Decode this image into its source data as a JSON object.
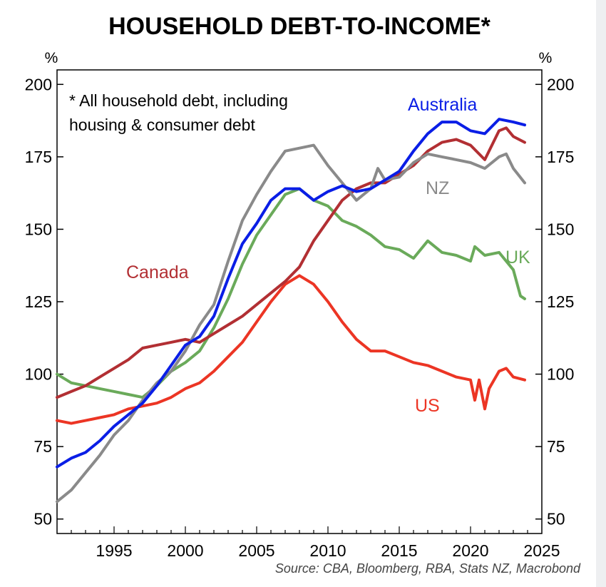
{
  "chart_data": {
    "type": "line",
    "title": "HOUSEHOLD DEBT-TO-INCOME*",
    "ylabel_left": "%",
    "ylabel_right": "%",
    "xlim": [
      1991,
      2025
    ],
    "ylim": [
      45,
      205
    ],
    "x_ticks": [
      1995,
      2000,
      2005,
      2010,
      2015,
      2020,
      2025
    ],
    "y_ticks": [
      50,
      75,
      100,
      125,
      150,
      175,
      200
    ],
    "note": [
      "*  All household debt, including",
      "housing & consumer debt"
    ],
    "source": "Source: CBA, Bloomberg, RBA, Stats NZ, Macrobond",
    "grid": false,
    "series": [
      {
        "name": "Australia",
        "color": "#0a1ee6",
        "values": [
          [
            1991.0,
            68
          ],
          [
            1992.0,
            71
          ],
          [
            1993.0,
            73
          ],
          [
            1994.0,
            77
          ],
          [
            1995.0,
            82
          ],
          [
            1996.0,
            86
          ],
          [
            1997.0,
            90
          ],
          [
            1998.0,
            96
          ],
          [
            1999.0,
            103
          ],
          [
            2000.0,
            110
          ],
          [
            2001.0,
            113
          ],
          [
            2002.0,
            120
          ],
          [
            2003.0,
            133
          ],
          [
            2004.0,
            145
          ],
          [
            2005.0,
            152
          ],
          [
            2006.0,
            160
          ],
          [
            2007.0,
            164
          ],
          [
            2008.0,
            164
          ],
          [
            2009.0,
            160
          ],
          [
            2010.0,
            163
          ],
          [
            2011.0,
            165
          ],
          [
            2012.0,
            163
          ],
          [
            2013.0,
            164
          ],
          [
            2014.0,
            167
          ],
          [
            2015.0,
            170
          ],
          [
            2016.0,
            177
          ],
          [
            2017.0,
            183
          ],
          [
            2018.0,
            187
          ],
          [
            2019.0,
            187
          ],
          [
            2020.0,
            184
          ],
          [
            2021.0,
            183
          ],
          [
            2022.0,
            188
          ],
          [
            2023.0,
            187
          ],
          [
            2023.8,
            186
          ]
        ]
      },
      {
        "name": "Canada",
        "color": "#b22f33",
        "values": [
          [
            1991.0,
            92
          ],
          [
            1992.0,
            94
          ],
          [
            1993.0,
            96
          ],
          [
            1994.0,
            99
          ],
          [
            1995.0,
            102
          ],
          [
            1996.0,
            105
          ],
          [
            1997.0,
            109
          ],
          [
            1998.0,
            110
          ],
          [
            1999.0,
            111
          ],
          [
            2000.0,
            112
          ],
          [
            2001.0,
            111
          ],
          [
            2002.0,
            114
          ],
          [
            2003.0,
            117
          ],
          [
            2004.0,
            120
          ],
          [
            2005.0,
            124
          ],
          [
            2006.0,
            128
          ],
          [
            2007.0,
            132
          ],
          [
            2008.0,
            137
          ],
          [
            2009.0,
            146
          ],
          [
            2010.0,
            153
          ],
          [
            2011.0,
            160
          ],
          [
            2012.0,
            164
          ],
          [
            2013.0,
            166
          ],
          [
            2014.0,
            166
          ],
          [
            2015.0,
            169
          ],
          [
            2016.0,
            172
          ],
          [
            2017.0,
            177
          ],
          [
            2018.0,
            180
          ],
          [
            2019.0,
            181
          ],
          [
            2020.0,
            179
          ],
          [
            2021.0,
            174
          ],
          [
            2022.0,
            184
          ],
          [
            2022.5,
            185
          ],
          [
            2023.0,
            182
          ],
          [
            2023.8,
            180
          ]
        ]
      },
      {
        "name": "NZ",
        "color": "#8a8a8a",
        "values": [
          [
            1991.0,
            56
          ],
          [
            1992.0,
            60
          ],
          [
            1993.0,
            66
          ],
          [
            1994.0,
            72
          ],
          [
            1995.0,
            79
          ],
          [
            1996.0,
            84
          ],
          [
            1997.0,
            91
          ],
          [
            1998.0,
            97
          ],
          [
            1999.0,
            101
          ],
          [
            2000.0,
            108
          ],
          [
            2001.0,
            117
          ],
          [
            2002.0,
            124
          ],
          [
            2003.0,
            139
          ],
          [
            2004.0,
            153
          ],
          [
            2005.0,
            162
          ],
          [
            2006.0,
            170
          ],
          [
            2007.0,
            177
          ],
          [
            2008.0,
            178
          ],
          [
            2009.0,
            179
          ],
          [
            2010.0,
            172
          ],
          [
            2011.0,
            166
          ],
          [
            2012.0,
            160
          ],
          [
            2013.0,
            164
          ],
          [
            2013.5,
            171
          ],
          [
            2014.0,
            167
          ],
          [
            2015.0,
            168
          ],
          [
            2016.0,
            173
          ],
          [
            2017.0,
            176
          ],
          [
            2018.0,
            175
          ],
          [
            2019.0,
            174
          ],
          [
            2020.0,
            173
          ],
          [
            2021.0,
            171
          ],
          [
            2022.0,
            175
          ],
          [
            2022.5,
            176
          ],
          [
            2023.0,
            171
          ],
          [
            2023.8,
            166
          ]
        ]
      },
      {
        "name": "UK",
        "color": "#6aaa5a",
        "values": [
          [
            1991.0,
            100
          ],
          [
            1992.0,
            97
          ],
          [
            1993.0,
            96
          ],
          [
            1994.0,
            95
          ],
          [
            1995.0,
            94
          ],
          [
            1996.0,
            93
          ],
          [
            1997.0,
            92
          ],
          [
            1998.0,
            96
          ],
          [
            1999.0,
            101
          ],
          [
            2000.0,
            104
          ],
          [
            2001.0,
            108
          ],
          [
            2002.0,
            116
          ],
          [
            2003.0,
            126
          ],
          [
            2004.0,
            138
          ],
          [
            2005.0,
            148
          ],
          [
            2006.0,
            155
          ],
          [
            2007.0,
            162
          ],
          [
            2008.0,
            164
          ],
          [
            2009.0,
            160
          ],
          [
            2010.0,
            158
          ],
          [
            2011.0,
            153
          ],
          [
            2012.0,
            151
          ],
          [
            2013.0,
            148
          ],
          [
            2014.0,
            144
          ],
          [
            2015.0,
            143
          ],
          [
            2016.0,
            140
          ],
          [
            2017.0,
            146
          ],
          [
            2018.0,
            142
          ],
          [
            2019.0,
            141
          ],
          [
            2020.0,
            139
          ],
          [
            2020.3,
            144
          ],
          [
            2021.0,
            141
          ],
          [
            2022.0,
            142
          ],
          [
            2023.0,
            136
          ],
          [
            2023.5,
            127
          ],
          [
            2023.8,
            126
          ]
        ]
      },
      {
        "name": "US",
        "color": "#ec3524",
        "values": [
          [
            1991.0,
            84
          ],
          [
            1992.0,
            83
          ],
          [
            1993.0,
            84
          ],
          [
            1994.0,
            85
          ],
          [
            1995.0,
            86
          ],
          [
            1996.0,
            88
          ],
          [
            1997.0,
            89
          ],
          [
            1998.0,
            90
          ],
          [
            1999.0,
            92
          ],
          [
            2000.0,
            95
          ],
          [
            2001.0,
            97
          ],
          [
            2002.0,
            101
          ],
          [
            2003.0,
            106
          ],
          [
            2004.0,
            111
          ],
          [
            2005.0,
            118
          ],
          [
            2006.0,
            125
          ],
          [
            2007.0,
            131
          ],
          [
            2008.0,
            134
          ],
          [
            2009.0,
            131
          ],
          [
            2010.0,
            125
          ],
          [
            2011.0,
            118
          ],
          [
            2012.0,
            112
          ],
          [
            2013.0,
            108
          ],
          [
            2014.0,
            108
          ],
          [
            2015.0,
            106
          ],
          [
            2016.0,
            104
          ],
          [
            2017.0,
            103
          ],
          [
            2018.0,
            101
          ],
          [
            2019.0,
            99
          ],
          [
            2020.0,
            98
          ],
          [
            2020.3,
            91
          ],
          [
            2020.6,
            98
          ],
          [
            2021.0,
            88
          ],
          [
            2021.3,
            95
          ],
          [
            2022.0,
            101
          ],
          [
            2022.5,
            102
          ],
          [
            2023.0,
            99
          ],
          [
            2023.8,
            98
          ]
        ]
      }
    ],
    "labels": {
      "Australia": "Australia",
      "Canada": "Canada",
      "NZ": "NZ",
      "UK": "UK",
      "US": "US"
    }
  }
}
